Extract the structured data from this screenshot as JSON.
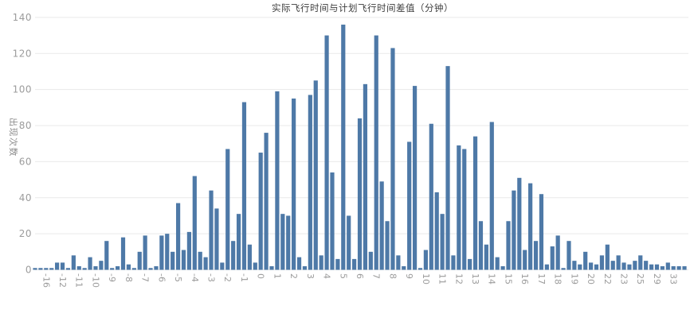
{
  "title": "实际飞行时间与计划飞行时间差值（分钟）",
  "y_axis_title": "出现次数",
  "colors": {
    "bar": "#4e79a7",
    "grid": "#e9e9e9",
    "tick_text": "#9c9c9c",
    "title_text": "#3d3d3d"
  },
  "chart_data": {
    "type": "bar",
    "title": "实际飞行时间与计划飞行时间差值（分钟）",
    "xlabel": "",
    "ylabel": "出现次数",
    "ylim": [
      0,
      140
    ],
    "yticks": [
      0,
      20,
      40,
      60,
      80,
      100,
      120,
      140
    ],
    "grid": true,
    "legend": false,
    "x_tick_labels": [
      "-16",
      "-12",
      "-11",
      "-10",
      "-9",
      "-8",
      "-7",
      "-6",
      "-5",
      "-4",
      "-3",
      "-2",
      "-1",
      "0",
      "1",
      "2",
      "3",
      "4",
      "5",
      "6",
      "7",
      "8",
      "9",
      "10",
      "11",
      "12",
      "13",
      "14",
      "15",
      "16",
      "17",
      "18",
      "19",
      "20",
      "22",
      "23",
      "25",
      "29",
      "33"
    ],
    "labeled_bar_start_index": 2,
    "labeled_bar_step": 3,
    "values": [
      1,
      1,
      1,
      1,
      4,
      4,
      1,
      8,
      2,
      1,
      7,
      2,
      5,
      16,
      1,
      2,
      18,
      3,
      1,
      10,
      19,
      1,
      2,
      19,
      20,
      10,
      37,
      11,
      21,
      52,
      10,
      7,
      44,
      34,
      4,
      67,
      16,
      31,
      93,
      14,
      4,
      65,
      76,
      2,
      99,
      31,
      30,
      95,
      7,
      2,
      97,
      105,
      8,
      130,
      54,
      6,
      136,
      30,
      6,
      84,
      103,
      10,
      130,
      49,
      27,
      123,
      8,
      2,
      71,
      102,
      1,
      11,
      81,
      43,
      31,
      113,
      8,
      69,
      67,
      6,
      74,
      27,
      14,
      82,
      7,
      2,
      27,
      44,
      51,
      11,
      48,
      16,
      42,
      3,
      13,
      19,
      1,
      16,
      5,
      3,
      10,
      4,
      3,
      8,
      14,
      5,
      8,
      4,
      3,
      5,
      8,
      5,
      3,
      3,
      2,
      4,
      2,
      2,
      2
    ]
  }
}
